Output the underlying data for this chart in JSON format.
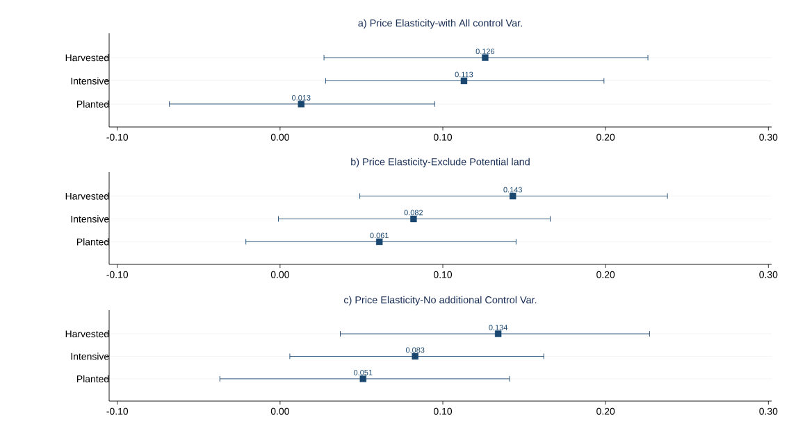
{
  "chart_data": [
    {
      "type": "scatter",
      "orientation": "horizontal",
      "title": "a) Price Elasticity-with All control Var.",
      "categories": [
        "Harvested",
        "Intensive",
        "Planted"
      ],
      "values": [
        0.126,
        0.113,
        0.013
      ],
      "errors": [
        [
          0.027,
          0.226
        ],
        [
          0.028,
          0.199
        ],
        [
          -0.068,
          0.095
        ]
      ],
      "value_labels": [
        "0.126",
        "0.113",
        "0.013"
      ],
      "color": "#1a476f",
      "marker": "square",
      "grid": "y",
      "xlim": [
        -0.105,
        0.302
      ],
      "xticks": [
        {
          "value": -0.1,
          "label": "-0.10"
        },
        {
          "value": 0,
          "label": "0.00"
        },
        {
          "value": 0.1,
          "label": "0.10"
        },
        {
          "value": 0.2,
          "label": "0.20"
        },
        {
          "value": 0.3,
          "label": "0.30"
        }
      ]
    },
    {
      "type": "scatter",
      "orientation": "horizontal",
      "title": "b) Price Elasticity-Exclude Potential land",
      "categories": [
        "Harvested",
        "Intensive",
        "Planted"
      ],
      "values": [
        0.143,
        0.082,
        0.061
      ],
      "errors": [
        [
          0.049,
          0.238
        ],
        [
          -0.001,
          0.166
        ],
        [
          -0.021,
          0.145
        ]
      ],
      "value_labels": [
        "0.143",
        "0.082",
        "0.061"
      ],
      "color": "#1a476f",
      "marker": "square",
      "grid": "y",
      "xlim": [
        -0.105,
        0.302
      ],
      "xticks": [
        {
          "value": -0.1,
          "label": "-0.10"
        },
        {
          "value": 0,
          "label": "0.00"
        },
        {
          "value": 0.1,
          "label": "0.10"
        },
        {
          "value": 0.2,
          "label": "0.20"
        },
        {
          "value": 0.3,
          "label": "0.30"
        }
      ]
    },
    {
      "type": "scatter",
      "orientation": "horizontal",
      "title": "c) Price Elasticity-No additional Control Var.",
      "categories": [
        "Harvested",
        "Intensive",
        "Planted"
      ],
      "values": [
        0.134,
        0.083,
        0.051
      ],
      "errors": [
        [
          0.037,
          0.227
        ],
        [
          0.006,
          0.162
        ],
        [
          -0.037,
          0.141
        ]
      ],
      "value_labels": [
        "0.134",
        "0.083",
        "0.051"
      ],
      "color": "#1a476f",
      "marker": "square",
      "grid": "y",
      "xlim": [
        -0.105,
        0.302
      ],
      "xticks": [
        {
          "value": -0.1,
          "label": "-0.10"
        },
        {
          "value": 0,
          "label": "0.00"
        },
        {
          "value": 0.1,
          "label": "0.10"
        },
        {
          "value": 0.2,
          "label": "0.20"
        },
        {
          "value": 0.3,
          "label": "0.30"
        }
      ]
    }
  ]
}
